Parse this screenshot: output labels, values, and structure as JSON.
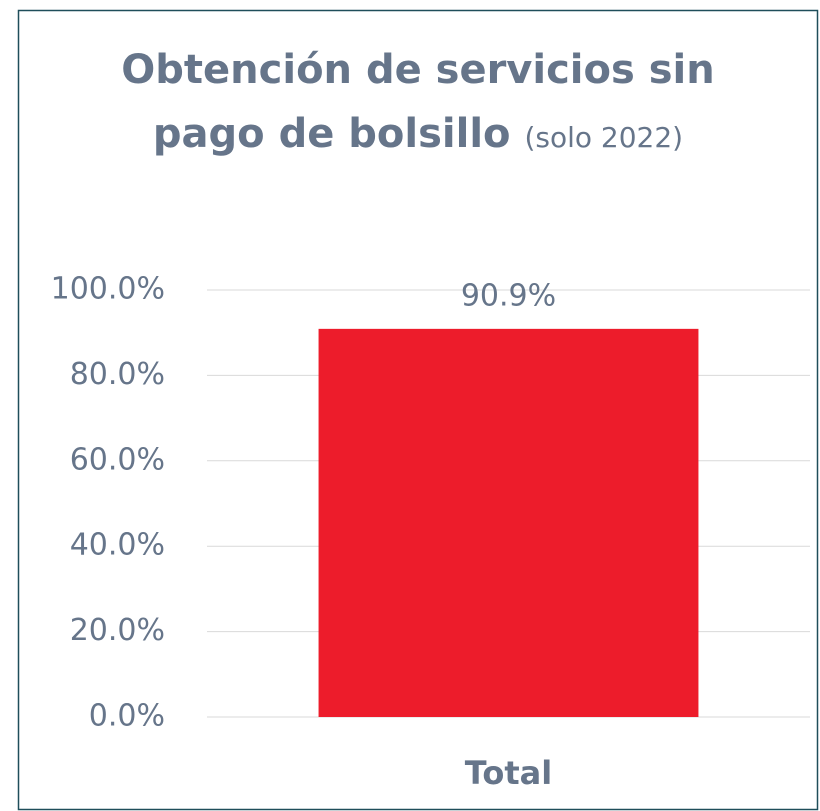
{
  "chart_data": {
    "type": "bar",
    "title": "Obtención de servicios sin pago de bolsillo",
    "subtitle": "(solo 2022)",
    "categories": [
      "Total"
    ],
    "values": [
      90.9
    ],
    "value_labels": [
      "90.9%"
    ],
    "color": "#ed1c2b",
    "ylim": [
      0,
      100
    ],
    "yticks": [
      {
        "value": 0,
        "label": "0.0%"
      },
      {
        "value": 20,
        "label": "20.0%"
      },
      {
        "value": 40,
        "label": "40.0%"
      },
      {
        "value": 60,
        "label": "60.0%"
      },
      {
        "value": 80,
        "label": "80.0%"
      },
      {
        "value": 100,
        "label": "100.0%"
      }
    ],
    "grid": true
  }
}
